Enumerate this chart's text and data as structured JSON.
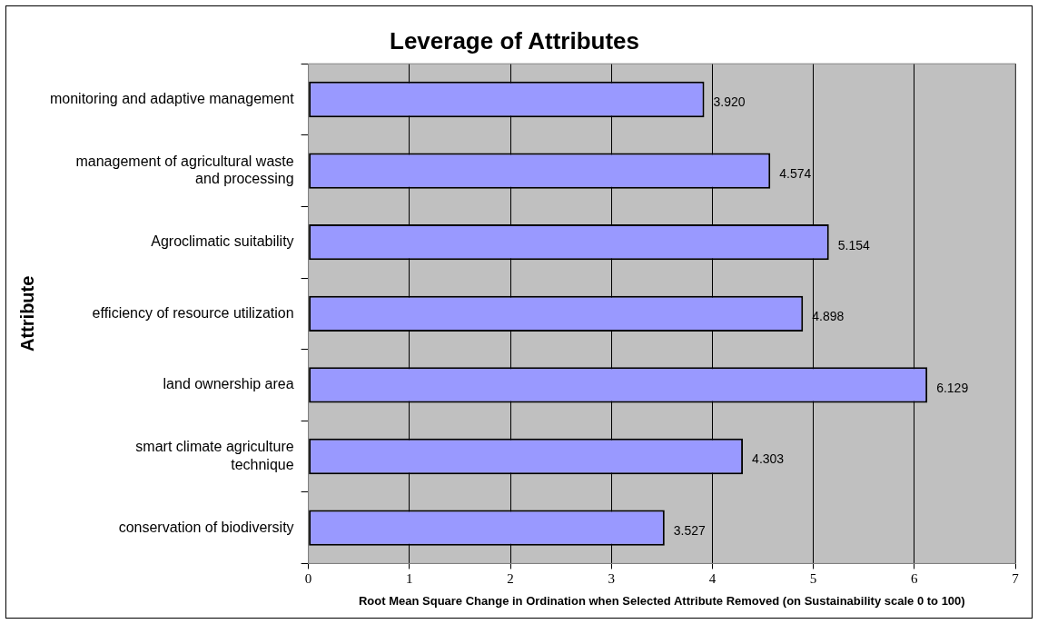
{
  "chart_data": {
    "type": "bar",
    "orientation": "horizontal",
    "title": "Leverage of Attributes",
    "xlabel": "Root Mean Square Change in Ordination when Selected Attribute Removed (on Sustainability scale 0 to 100)",
    "ylabel": "Attribute",
    "categories": [
      "monitoring and adaptive management",
      "management of agricultural waste and processing",
      "Agroclimatic suitability",
      "efficiency of resource utilization",
      "land ownership area",
      "smart climate agriculture technique",
      "conservation of biodiversity"
    ],
    "values": [
      3.92,
      4.574,
      5.154,
      4.898,
      6.129,
      4.303,
      3.527
    ],
    "value_labels": [
      "3.920",
      "4.574",
      "5.154",
      "4.898",
      "6.129",
      "4.303",
      "3.527"
    ],
    "color": "#9999ff",
    "xlim": [
      0,
      7
    ],
    "xticks": [
      0,
      1,
      2,
      3,
      4,
      5,
      6,
      7
    ],
    "grid": "x",
    "legend": false
  }
}
